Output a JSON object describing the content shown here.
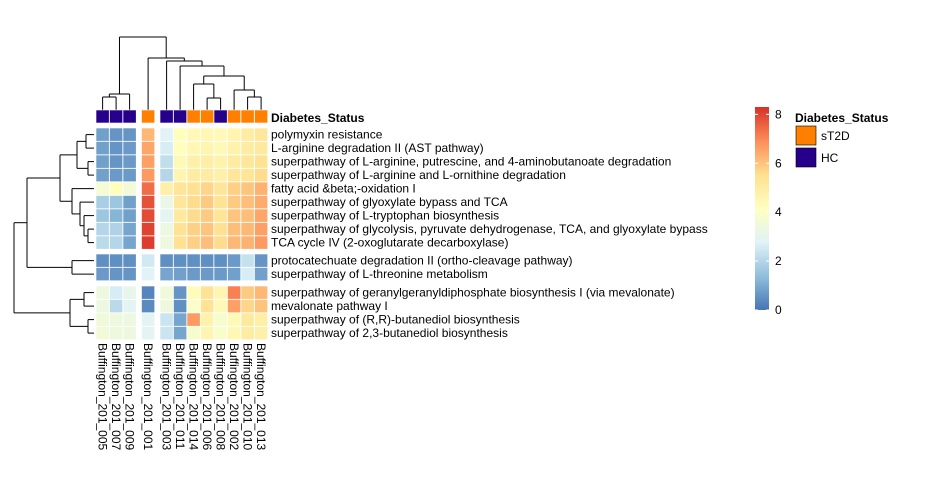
{
  "chart_data": {
    "type": "heatmap",
    "annotation_title": "Diabetes_Status",
    "legend": {
      "title": "Diabetes_Status",
      "entries": [
        {
          "label": "sT2D",
          "color": "#ff7f00"
        },
        {
          "label": "HC",
          "color": "#26008b"
        }
      ]
    },
    "colorbar": {
      "ticks": [
        "8",
        "6",
        "4",
        "2",
        "0"
      ],
      "tick_values": [
        8,
        6,
        4,
        2,
        0
      ],
      "range": [
        0,
        8.3
      ],
      "stops": [
        "#4575b4",
        "#91bfdb",
        "#e0f3f8",
        "#ffffbf",
        "#fee090",
        "#fc8d59",
        "#d73027"
      ]
    },
    "columns": [
      "Buffington_201_005",
      "Buffington_201_007",
      "Buffington_201_009",
      "Buffington_201_001",
      "Buffington_201_003",
      "Buffington_201_011",
      "Buffington_201_014",
      "Buffington_201_006",
      "Buffington_201_008",
      "Buffington_201_002",
      "Buffington_201_010",
      "Buffington_201_013"
    ],
    "column_status": [
      "HC",
      "HC",
      "HC",
      "sT2D",
      "HC",
      "HC",
      "sT2D",
      "sT2D",
      "HC",
      "sT2D",
      "sT2D",
      "sT2D"
    ],
    "rows": [
      "polymyxin resistance",
      "L-arginine degradation II (AST pathway)",
      "superpathway of L-arginine, putrescine, and 4-aminobutanoate degradation",
      "superpathway of L-arginine and L-ornithine degradation",
      "fatty acid &beta;-oxidation I",
      "superpathway of glyoxylate bypass and TCA",
      "superpathway of L-tryptophan biosynthesis",
      "superpathway of glycolysis, pyruvate dehydrogenase, TCA, and glyoxylate bypass",
      "TCA cycle IV (2-oxoglutarate decarboxylase)",
      "protocatechuate degradation II (ortho-cleavage pathway)",
      "superpathway of L-threonine metabolism",
      "superpathway of geranylgeranyldiphosphate biosynthesis I (via mevalonate)",
      "mevalonate pathway I",
      "superpathway of (R,R)-butanediol biosynthesis",
      "superpathway of 2,3-butanediol biosynthesis"
    ],
    "values": [
      [
        0.8,
        0.6,
        0.6,
        6.2,
        2.8,
        4.2,
        4.4,
        4.5,
        4.4,
        4.6,
        5.0,
        5.2
      ],
      [
        0.8,
        0.6,
        0.7,
        6.5,
        2.6,
        4.2,
        4.5,
        4.6,
        4.4,
        4.7,
        5.0,
        5.1
      ],
      [
        0.8,
        0.6,
        0.7,
        6.6,
        2.2,
        4.4,
        4.8,
        4.9,
        4.7,
        5.0,
        5.2,
        5.4
      ],
      [
        0.8,
        0.7,
        0.7,
        6.7,
        2.0,
        4.6,
        5.0,
        5.0,
        4.8,
        5.2,
        5.3,
        5.6
      ],
      [
        3.7,
        4.2,
        3.6,
        7.4,
        4.8,
        5.3,
        5.5,
        5.7,
        5.3,
        5.8,
        6.0,
        6.3
      ],
      [
        1.8,
        1.6,
        0.8,
        7.8,
        3.2,
        5.2,
        5.6,
        5.9,
        5.4,
        5.9,
        6.1,
        6.4
      ],
      [
        1.6,
        1.2,
        0.8,
        7.9,
        2.9,
        5.1,
        5.6,
        5.9,
        5.3,
        6.0,
        6.1,
        6.5
      ],
      [
        2.0,
        1.9,
        0.9,
        8.0,
        3.3,
        5.4,
        5.8,
        6.0,
        5.5,
        6.1,
        6.2,
        6.6
      ],
      [
        2.1,
        2.0,
        0.9,
        8.1,
        3.4,
        5.5,
        5.8,
        6.1,
        5.6,
        6.2,
        6.3,
        6.7
      ],
      [
        0.5,
        0.5,
        0.5,
        2.5,
        0.5,
        0.5,
        0.5,
        0.5,
        0.5,
        0.7,
        2.3,
        0.6
      ],
      [
        0.7,
        0.6,
        0.6,
        2.8,
        0.9,
        0.8,
        0.7,
        0.7,
        0.7,
        0.8,
        2.6,
        0.8
      ],
      [
        3.4,
        2.6,
        3.1,
        0.3,
        3.5,
        0.6,
        4.3,
        5.4,
        4.6,
        7.1,
        5.9,
        6.2
      ],
      [
        3.3,
        2.1,
        2.9,
        0.4,
        3.4,
        0.5,
        3.9,
        5.4,
        4.4,
        6.6,
        5.7,
        6.0
      ],
      [
        3.5,
        3.4,
        3.3,
        2.9,
        2.4,
        0.9,
        6.7,
        4.7,
        3.8,
        4.4,
        5.1,
        4.9
      ],
      [
        3.6,
        3.4,
        3.4,
        2.9,
        2.4,
        0.9,
        3.8,
        4.6,
        3.9,
        4.5,
        5.0,
        4.8
      ]
    ]
  }
}
